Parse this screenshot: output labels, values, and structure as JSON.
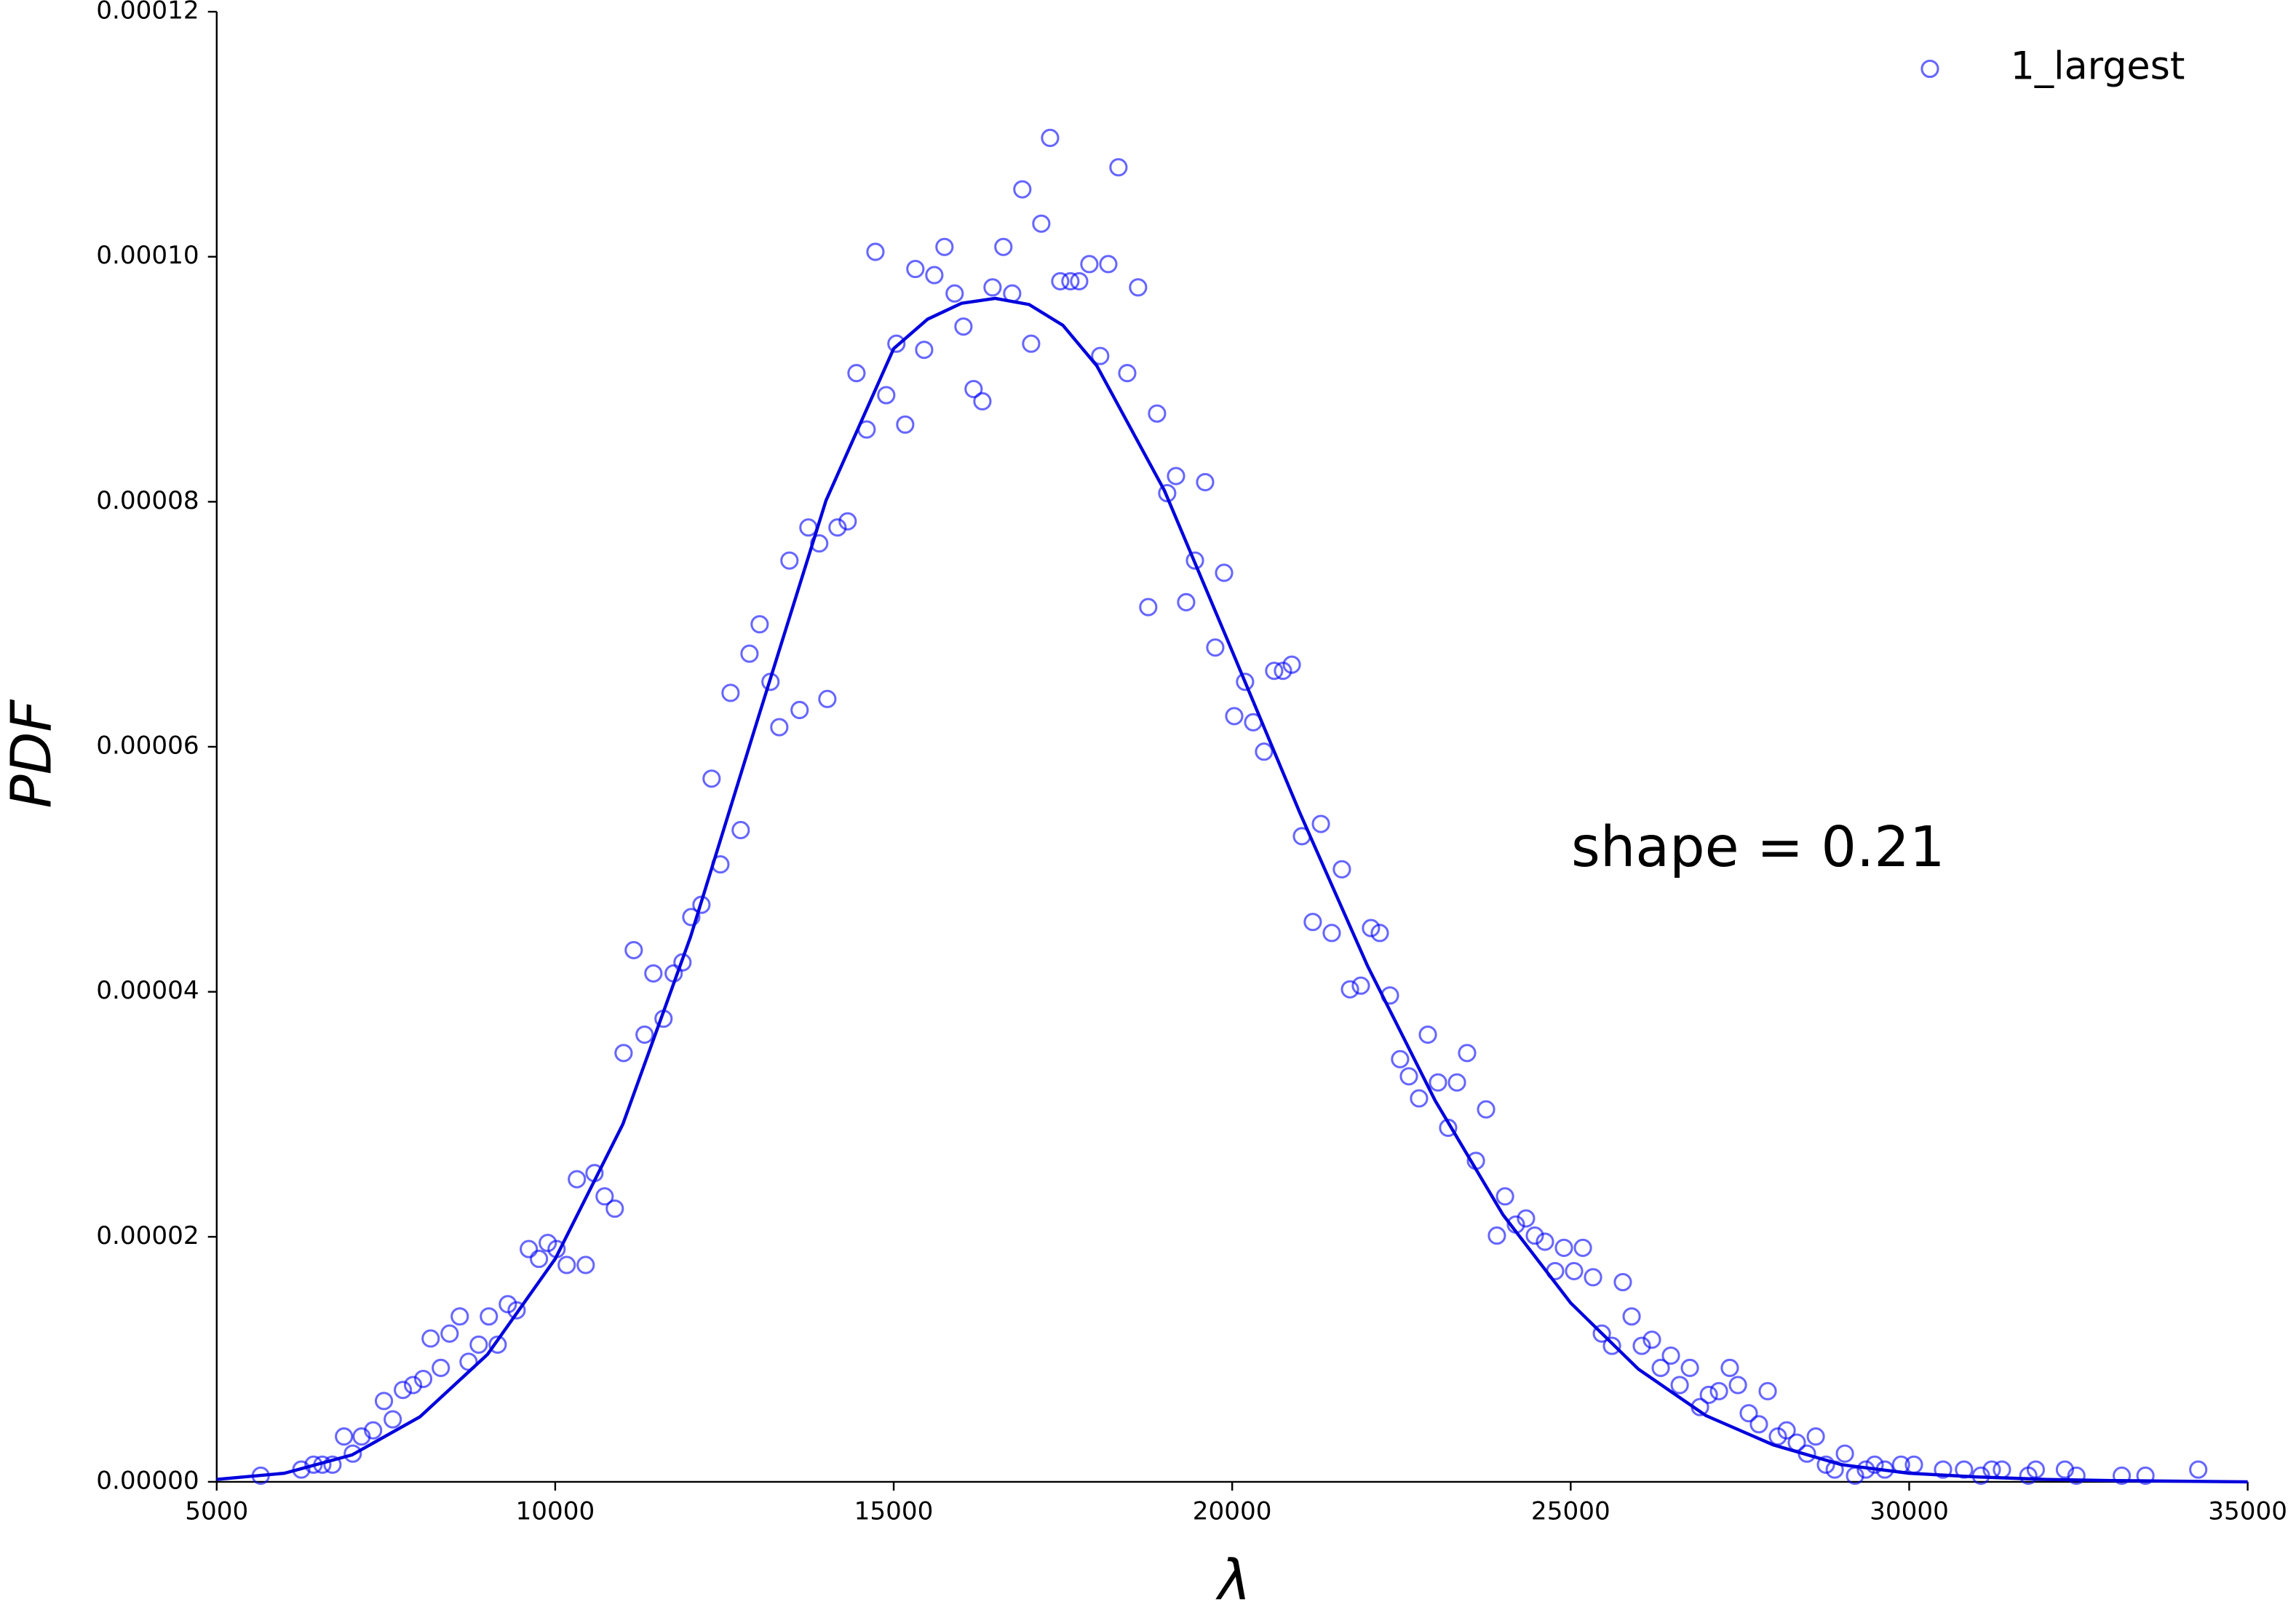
{
  "chart_data": {
    "type": "scatter",
    "xlabel": "λ",
    "ylabel": "PDF",
    "annotation": "shape = 0.21",
    "legend": "upper right",
    "xlim": [
      5000,
      35000
    ],
    "ylim": [
      0,
      0.00012
    ],
    "xticks": [
      5000,
      10000,
      15000,
      20000,
      25000,
      30000,
      35000
    ],
    "yticks": [
      {
        "value": 0,
        "label": "0.00000"
      },
      {
        "value": 2e-05,
        "label": "0.00002"
      },
      {
        "value": 4e-05,
        "label": "0.00004"
      },
      {
        "value": 6e-05,
        "label": "0.00006"
      },
      {
        "value": 8e-05,
        "label": "0.00008"
      },
      {
        "value": 0.0001,
        "label": "0.00010"
      },
      {
        "value": 0.00012,
        "label": "0.00012"
      }
    ],
    "series": [
      {
        "name": "1_largest",
        "type": "scatter",
        "color": "#0000ff",
        "x": [
          5650,
          6250,
          6430,
          6560,
          6710,
          6880,
          7010,
          7140,
          7310,
          7470,
          7600,
          7750,
          7900,
          8050,
          8160,
          8310,
          8440,
          8590,
          8720,
          8870,
          9020,
          9150,
          9300,
          9430,
          9610,
          9760,
          9890,
          10020,
          10170,
          10320,
          10450,
          10580,
          10730,
          10880,
          11010,
          11160,
          11320,
          11450,
          11600,
          11750,
          11880,
          12010,
          12160,
          12310,
          12440,
          12590,
          12740,
          12870,
          13020,
          13180,
          13310,
          13460,
          13610,
          13740,
          13900,
          14020,
          14170,
          14320,
          14450,
          14600,
          14730,
          14890,
          15040,
          15170,
          15320,
          15450,
          15600,
          15750,
          15900,
          16030,
          16180,
          16310,
          16460,
          16620,
          16750,
          16900,
          17030,
          17180,
          17310,
          17460,
          17610,
          17740,
          17890,
          18050,
          18170,
          18320,
          18450,
          18610,
          18760,
          18890,
          19040,
          19170,
          19320,
          19450,
          19600,
          19750,
          19880,
          20030,
          20190,
          20310,
          20470,
          20620,
          20750,
          20880,
          21030,
          21190,
          21310,
          21470,
          21620,
          21740,
          21900,
          22050,
          22180,
          22330,
          22480,
          22610,
          22760,
          22890,
          23040,
          23190,
          23320,
          23470,
          23600,
          23750,
          23910,
          24030,
          24190,
          24340,
          24470,
          24620,
          24770,
          24900,
          25050,
          25180,
          25330,
          25460,
          25610,
          25770,
          25900,
          26050,
          26200,
          26330,
          26480,
          26610,
          26760,
          26910,
          27040,
          27190,
          27350,
          27470,
          27630,
          27780,
          27910,
          28060,
          28190,
          28340,
          28490,
          28620,
          28770,
          28900,
          29050,
          29200,
          29360,
          29490,
          29640,
          29880,
          30070,
          30500,
          30810,
          31060,
          31220,
          31370,
          31760,
          31870,
          32300,
          32470,
          33140,
          33490,
          34270
        ],
        "values": [
          5e-07,
          1e-06,
          1.4e-06,
          1.4e-06,
          1.4e-06,
          3.7e-06,
          2.3e-06,
          3.7e-06,
          4.2e-06,
          6.6e-06,
          5.1e-06,
          7.5e-06,
          7.9e-06,
          8.4e-06,
          1.17e-05,
          9.3e-06,
          1.21e-05,
          1.35e-05,
          9.8e-06,
          1.12e-05,
          1.35e-05,
          1.12e-05,
          1.45e-05,
          1.4e-05,
          1.9e-05,
          1.82e-05,
          1.95e-05,
          1.9e-05,
          1.77e-05,
          2.47e-05,
          1.77e-05,
          2.52e-05,
          2.33e-05,
          2.23e-05,
          3.5e-05,
          4.34e-05,
          3.65e-05,
          4.15e-05,
          3.78e-05,
          4.15e-05,
          4.24e-05,
          4.61e-05,
          4.71e-05,
          5.74e-05,
          5.04e-05,
          6.44e-05,
          5.32e-05,
          6.76e-05,
          7e-05,
          6.53e-05,
          6.16e-05,
          7.52e-05,
          6.3e-05,
          7.79e-05,
          7.66e-05,
          6.39e-05,
          7.79e-05,
          7.84e-05,
          9.05e-05,
          8.59e-05,
          0.0001004,
          8.87e-05,
          9.29e-05,
          8.63e-05,
          9.9e-05,
          9.24e-05,
          9.85e-05,
          0.0001008,
          9.7e-05,
          9.43e-05,
          8.92e-05,
          8.82e-05,
          9.75e-05,
          0.0001008,
          9.7e-05,
          0.0001055,
          9.29e-05,
          0.0001027,
          0.0001097,
          9.8e-05,
          9.8e-05,
          9.8e-05,
          9.94e-05,
          9.19e-05,
          9.94e-05,
          0.0001073,
          9.05e-05,
          9.75e-05,
          7.14e-05,
          8.72e-05,
          8.07e-05,
          8.21e-05,
          7.18e-05,
          7.52e-05,
          8.16e-05,
          6.81e-05,
          7.42e-05,
          6.25e-05,
          6.53e-05,
          6.2e-05,
          5.96e-05,
          6.62e-05,
          6.62e-05,
          6.67e-05,
          5.27e-05,
          4.57e-05,
          5.37e-05,
          4.48e-05,
          5e-05,
          4.02e-05,
          4.05e-05,
          4.52e-05,
          4.48e-05,
          3.97e-05,
          3.45e-05,
          3.31e-05,
          3.13e-05,
          3.65e-05,
          3.26e-05,
          2.89e-05,
          3.26e-05,
          3.5e-05,
          2.62e-05,
          3.04e-05,
          2.01e-05,
          2.33e-05,
          2.1e-05,
          2.15e-05,
          2.01e-05,
          1.96e-05,
          1.72e-05,
          1.91e-05,
          1.72e-05,
          1.91e-05,
          1.67e-05,
          1.21e-05,
          1.11e-05,
          1.63e-05,
          1.35e-05,
          1.11e-05,
          1.16e-05,
          9.3e-06,
          1.03e-05,
          7.9e-06,
          9.3e-06,
          6.1e-06,
          7.1e-06,
          7.4e-06,
          9.3e-06,
          7.9e-06,
          5.6e-06,
          4.7e-06,
          7.4e-06,
          3.7e-06,
          4.2e-06,
          3.2e-06,
          2.3e-06,
          3.7e-06,
          1.4e-06,
          1e-06,
          2.3e-06,
          5e-07,
          1e-06,
          1.4e-06,
          1e-06,
          1.4e-06,
          1.4e-06,
          1e-06,
          1e-06,
          5e-07,
          1e-06,
          1e-06,
          5e-07,
          1e-06,
          1e-06,
          5e-07,
          5e-07,
          5e-07,
          1e-06
        ]
      },
      {
        "type": "line",
        "color": "#0000dd",
        "x": [
          5000,
          6000,
          7000,
          8000,
          9000,
          10000,
          11000,
          12000,
          13000,
          14000,
          15000,
          15500,
          16000,
          16500,
          17000,
          17500,
          18000,
          19000,
          20000,
          21000,
          22000,
          23000,
          24000,
          25000,
          26000,
          27000,
          28000,
          29000,
          30000,
          31000,
          32000,
          33000,
          34000,
          35000
        ],
        "values": [
          2e-07,
          7e-07,
          2.2e-06,
          5.3e-06,
          1.04e-05,
          1.82e-05,
          2.92e-05,
          4.45e-05,
          6.24e-05,
          8.01e-05,
          9.25e-05,
          9.49e-05,
          9.62e-05,
          9.66e-05,
          9.61e-05,
          9.44e-05,
          9.11e-05,
          8.09e-05,
          6.78e-05,
          5.46e-05,
          4.21e-05,
          3.11e-05,
          2.18e-05,
          1.46e-05,
          9.2e-06,
          5.4e-06,
          3e-06,
          1.4e-06,
          7e-07,
          4e-07,
          2e-07,
          1e-07,
          5e-08,
          0
        ]
      }
    ]
  }
}
